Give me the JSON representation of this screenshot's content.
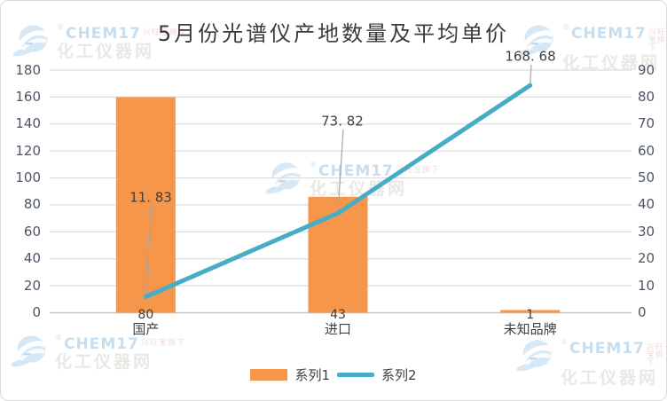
{
  "title": "5月份光谱仪产地数量及平均单价",
  "watermark": {
    "brand": "CHEM17",
    "registered_mark": "®",
    "tagline": "兴旺宝旗下",
    "site_name": "化工仪器网"
  },
  "legend": [
    {
      "label": "系列1",
      "type": "bar",
      "color": "#f5964a"
    },
    {
      "label": "系列2",
      "type": "line",
      "color": "#47acc5"
    }
  ],
  "chart_data": {
    "type": "bar",
    "combo": [
      "bar",
      "line"
    ],
    "title": "5月份光谱仪产地数量及平均单价",
    "categories": [
      "国产",
      "进口",
      "未知品牌"
    ],
    "series": [
      {
        "name": "系列1",
        "type": "bar",
        "axis": "right",
        "color": "#f5964a",
        "values": [
          80,
          43,
          1
        ],
        "labels": [
          "80",
          "43",
          "1"
        ],
        "label_position": "below-axis"
      },
      {
        "name": "系列2",
        "type": "line",
        "axis": "left",
        "color": "#47acc5",
        "values": [
          11.83,
          73.82,
          168.68
        ],
        "labels": [
          "11. 83",
          "73. 82",
          "168. 68"
        ],
        "label_position": "above-point-with-leader"
      }
    ],
    "left_axis": {
      "min": 0,
      "max": 180,
      "step": 20,
      "ticks": [
        0,
        20,
        40,
        60,
        80,
        100,
        120,
        140,
        160,
        180
      ]
    },
    "right_axis": {
      "min": 0,
      "max": 90,
      "step": 10,
      "ticks": [
        0,
        10,
        20,
        30,
        40,
        50,
        60,
        70,
        80,
        90
      ]
    },
    "grid": true,
    "legend_position": "bottom"
  },
  "colors": {
    "bar": "#f5964a",
    "line": "#47acc5",
    "grid": "#dcdcdc",
    "axis_line": "#c6c6c6",
    "tick_text": "#4e5564",
    "label_text": "#3f3f3f",
    "leader": "#a6a6a6",
    "title_text": "#3b3b3b",
    "border": "#d9d9d9",
    "watermark_blue": "#d6e8f6",
    "watermark_blue_dark": "#c5def0",
    "watermark_gray": "#e8e8e5",
    "watermark_pink": "#f0dcda",
    "background": "#ffffff"
  }
}
